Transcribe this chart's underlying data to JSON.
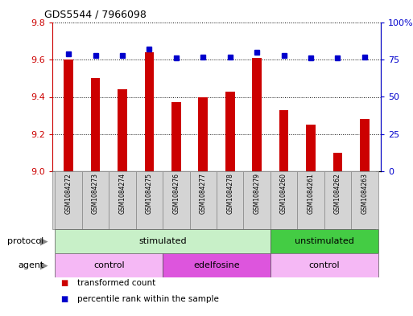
{
  "title": "GDS5544 / 7966098",
  "samples": [
    "GSM1084272",
    "GSM1084273",
    "GSM1084274",
    "GSM1084275",
    "GSM1084276",
    "GSM1084277",
    "GSM1084278",
    "GSM1084279",
    "GSM1084260",
    "GSM1084261",
    "GSM1084262",
    "GSM1084263"
  ],
  "bar_values": [
    9.6,
    9.5,
    9.44,
    9.64,
    9.37,
    9.4,
    9.43,
    9.61,
    9.33,
    9.25,
    9.1,
    9.28
  ],
  "percentile_values": [
    79,
    78,
    78,
    82,
    76,
    77,
    77,
    80,
    78,
    76,
    76,
    77
  ],
  "bar_color": "#cc0000",
  "dot_color": "#0000cc",
  "ylim_left": [
    9.0,
    9.8
  ],
  "ylim_right": [
    0,
    100
  ],
  "yticks_left": [
    9.0,
    9.2,
    9.4,
    9.6,
    9.8
  ],
  "yticks_right": [
    0,
    25,
    50,
    75,
    100
  ],
  "protocol_groups": [
    {
      "label": "stimulated",
      "start": 0,
      "end": 8,
      "color": "#c8f0c8"
    },
    {
      "label": "unstimulated",
      "start": 8,
      "end": 12,
      "color": "#44cc44"
    }
  ],
  "agent_groups": [
    {
      "label": "control",
      "start": 0,
      "end": 4,
      "color": "#f5b8f5"
    },
    {
      "label": "edelfosine",
      "start": 4,
      "end": 8,
      "color": "#dd55dd"
    },
    {
      "label": "control",
      "start": 8,
      "end": 12,
      "color": "#f5b8f5"
    }
  ],
  "legend_items": [
    {
      "label": "transformed count",
      "color": "#cc0000"
    },
    {
      "label": "percentile rank within the sample",
      "color": "#0000cc"
    }
  ],
  "background_color": "#ffffff",
  "grid_color": "#000000",
  "tick_label_color_left": "#cc0000",
  "tick_label_color_right": "#0000cc"
}
